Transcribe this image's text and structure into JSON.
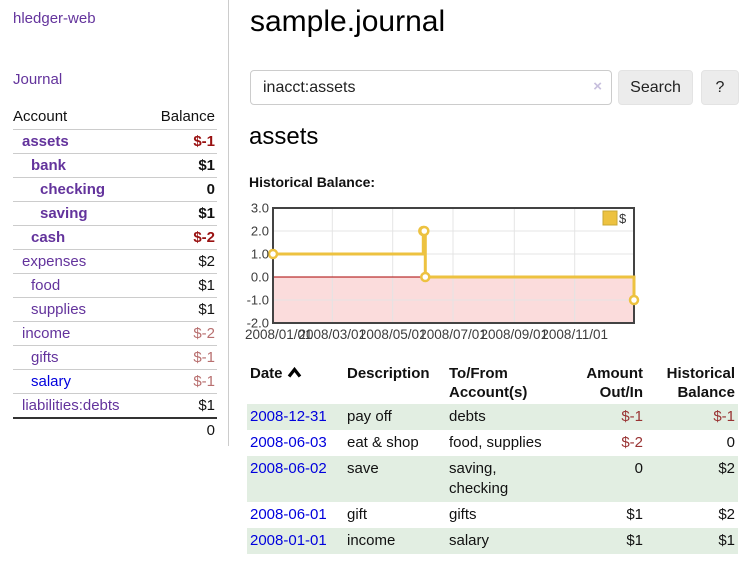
{
  "colors": {
    "link_purple": "#63339c",
    "link_blue": "#0000dd",
    "negative_strong": "#991111",
    "negative_muted": "#b86f6f",
    "table_negative": "#993333",
    "row_green": "#e2eee2",
    "chart_line": "#edc240",
    "chart_negative_fill": "#fbdcdc",
    "zero_line": "#aa0000"
  },
  "sidebar": {
    "brand": "hledger-web",
    "journal_link": "Journal",
    "accounts": {
      "headers": [
        "Account",
        "Balance"
      ],
      "rows": [
        {
          "name": "assets",
          "depth": 0,
          "bold": true,
          "balance": "$-1",
          "balance_style": "neg"
        },
        {
          "name": "bank",
          "depth": 1,
          "bold": true,
          "balance": "$1",
          "balance_style": "pos"
        },
        {
          "name": "checking",
          "depth": 2,
          "bold": true,
          "balance": "0",
          "balance_style": "pos"
        },
        {
          "name": "saving",
          "depth": 2,
          "bold": true,
          "balance": "$1",
          "balance_style": "pos"
        },
        {
          "name": "cash",
          "depth": 1,
          "bold": true,
          "balance": "$-2",
          "balance_style": "neg"
        },
        {
          "name": "expenses",
          "depth": 0,
          "bold": false,
          "balance": "$2",
          "balance_style": "pos"
        },
        {
          "name": "food",
          "depth": 1,
          "bold": false,
          "balance": "$1",
          "balance_style": "pos"
        },
        {
          "name": "supplies",
          "depth": 1,
          "bold": false,
          "balance": "$1",
          "balance_style": "pos"
        },
        {
          "name": "income",
          "depth": 0,
          "bold": false,
          "balance": "$-2",
          "balance_style": "neg_muted"
        },
        {
          "name": "gifts",
          "depth": 1,
          "bold": false,
          "balance": "$-1",
          "balance_style": "neg_muted"
        },
        {
          "name": "salary",
          "depth": 1,
          "bold": false,
          "balance": "$-1",
          "balance_style": "neg_muted",
          "link_style": "blue"
        },
        {
          "name": "liabilities:debts",
          "depth": 0,
          "bold": false,
          "balance": "$1",
          "balance_style": "pos"
        }
      ],
      "total": "0"
    }
  },
  "main": {
    "title": "sample.journal",
    "search": {
      "value": "inacct:assets",
      "clear_icon": "×",
      "search_button": "Search",
      "help_button": "?"
    },
    "heading": "assets",
    "chart_title": "Historical Balance:"
  },
  "chart_data": {
    "type": "line",
    "title": "Historical Balance:",
    "series": [
      {
        "name": "$",
        "color": "#edc240",
        "steps": true,
        "points": [
          [
            "2008-01-01",
            1
          ],
          [
            "2008-06-01",
            2
          ],
          [
            "2008-06-02",
            2
          ],
          [
            "2008-06-03",
            0
          ],
          [
            "2008-12-31",
            -1
          ]
        ]
      }
    ],
    "xrange": [
      "2008-01-01",
      "2008-12-31"
    ],
    "ylim": [
      -2,
      3
    ],
    "yticks": [
      3,
      2,
      1,
      0,
      -1,
      -2
    ],
    "xticks": [
      [
        "2008-01-01",
        "2008/01/01"
      ],
      [
        "2008-03-01",
        "2008/03/01"
      ],
      [
        "2008-05-01",
        "2008/05/01"
      ],
      [
        "2008-07-01",
        "2008/07/01"
      ],
      [
        "2008-09-01",
        "2008/09/01"
      ],
      [
        "2008-11-01",
        "2008/11/01"
      ]
    ],
    "legend": {
      "label": "$",
      "position": "top-right"
    },
    "grid": true
  },
  "register": {
    "headers": [
      {
        "label": "Date",
        "sorted": "asc"
      },
      {
        "label": "Description"
      },
      {
        "label": "To/From Account(s)"
      },
      {
        "label": "Amount Out/In",
        "align": "right"
      },
      {
        "label": "Historical Balance",
        "align": "right"
      }
    ],
    "rows": [
      {
        "date": "2008-12-31",
        "description": "pay off",
        "accounts": "debts",
        "amount": "$-1",
        "balance": "$-1",
        "shade": true
      },
      {
        "date": "2008-06-03",
        "description": "eat & shop",
        "accounts": "food, supplies",
        "amount": "$-2",
        "balance": "0",
        "shade": false
      },
      {
        "date": "2008-06-02",
        "description": "save",
        "accounts": "saving, checking",
        "amount": "0",
        "balance": "$2",
        "shade": true
      },
      {
        "date": "2008-06-01",
        "description": "gift",
        "accounts": "gifts",
        "amount": "$1",
        "balance": "$2",
        "shade": false
      },
      {
        "date": "2008-01-01",
        "description": "income",
        "accounts": "salary",
        "amount": "$1",
        "balance": "$1",
        "shade": true
      }
    ]
  }
}
